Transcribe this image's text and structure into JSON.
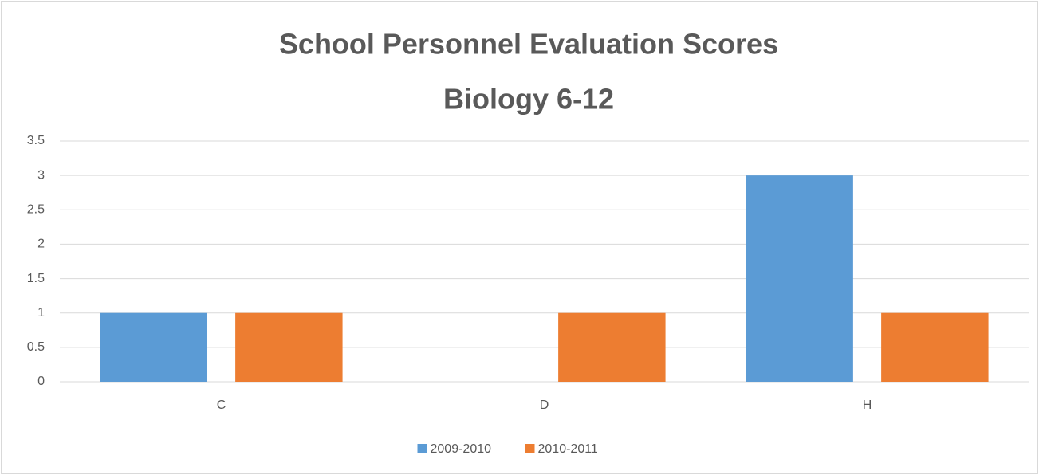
{
  "chart_data": {
    "type": "bar",
    "title": "School Personnel Evaluation Scores",
    "subtitle": "Biology 6-12",
    "categories": [
      "C",
      "D",
      "H"
    ],
    "series": [
      {
        "name": "2009-2010",
        "color": "#5b9bd5",
        "values": [
          1,
          0,
          3
        ]
      },
      {
        "name": "2010-2011",
        "color": "#ed7d31",
        "values": [
          1,
          1,
          1
        ]
      }
    ],
    "ylim": [
      0,
      3.5
    ],
    "yticks": [
      0,
      0.5,
      1,
      1.5,
      2,
      2.5,
      3,
      3.5
    ],
    "grid": true,
    "legend": "bottom"
  }
}
